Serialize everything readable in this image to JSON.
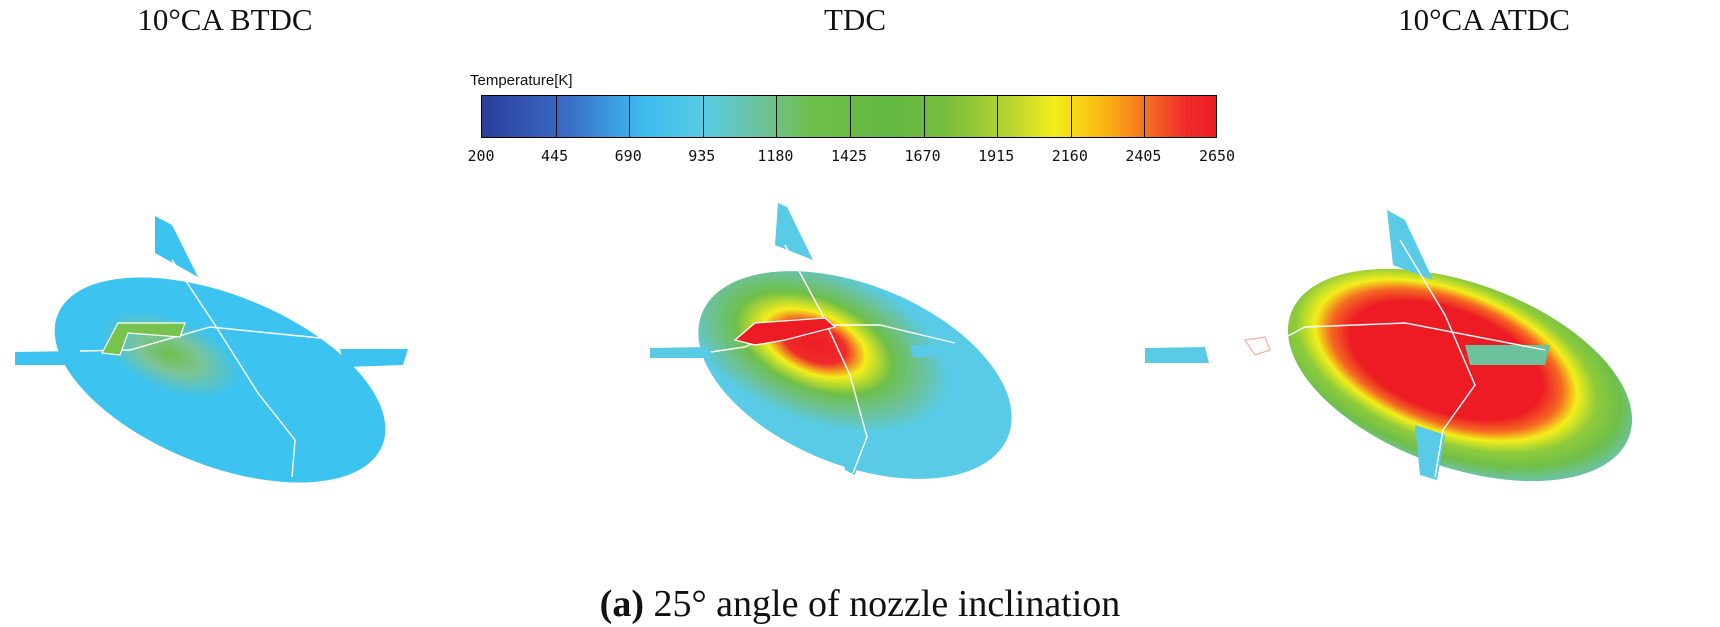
{
  "panels": [
    {
      "title": "10°CA BTDC",
      "contour": "flame-kernel-small"
    },
    {
      "title": "TDC",
      "contour": "flame-developing"
    },
    {
      "title": "10°CA ATDC",
      "contour": "flame-fully-developed"
    }
  ],
  "legend": {
    "title": "Temperature[K]",
    "ticks": [
      "200",
      "445",
      "690",
      "935",
      "1180",
      "1425",
      "1670",
      "1915",
      "2160",
      "2405",
      "2650"
    ],
    "min": 200,
    "max": 2650
  },
  "caption": {
    "label": "(a)",
    "text": " 25° angle of nozzle inclination"
  },
  "colors": {
    "cold": "#3cc3ef",
    "warm_green": "#6fbf4a",
    "yellow": "#f3ee1a",
    "hot_red": "#ed1c24"
  }
}
